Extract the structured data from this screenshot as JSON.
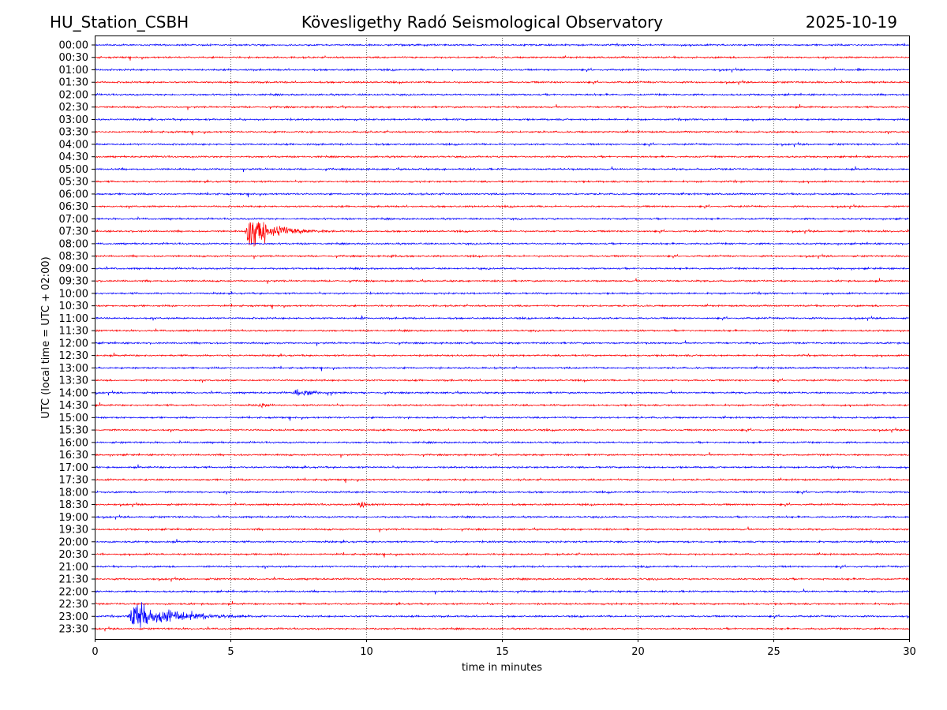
{
  "header": {
    "station": "HU_Station_CSBH",
    "observatory": "Kövesligethy Radó Seismological Observatory",
    "date": "2025-10-19"
  },
  "chart_data": {
    "type": "line",
    "title": "Kövesligethy Radó Seismological Observatory",
    "xlabel": "time in minutes",
    "ylabel": "UTC (local time = UTC + 02:00)",
    "xlim": [
      0,
      30
    ],
    "xticks": [
      "0",
      "5",
      "10",
      "15",
      "20",
      "25",
      "30"
    ],
    "grid": "vertical dotted at every 5 minutes",
    "colors": [
      "#0000ff",
      "#ff0000"
    ],
    "rows": [
      "00:00",
      "00:30",
      "01:00",
      "01:30",
      "02:00",
      "02:30",
      "03:00",
      "03:30",
      "04:00",
      "04:30",
      "05:00",
      "05:30",
      "06:00",
      "06:30",
      "07:00",
      "07:30",
      "08:00",
      "08:30",
      "09:00",
      "09:30",
      "10:00",
      "10:30",
      "11:00",
      "11:30",
      "12:00",
      "12:30",
      "13:00",
      "13:30",
      "14:00",
      "14:30",
      "15:00",
      "15:30",
      "16:00",
      "16:30",
      "17:00",
      "17:30",
      "18:00",
      "18:30",
      "19:00",
      "19:30",
      "20:00",
      "20:30",
      "21:00",
      "21:30",
      "22:00",
      "22:30",
      "23:00",
      "23:30"
    ],
    "events": [
      {
        "row": "07:30",
        "start_min": 5.5,
        "end_min": 8.6,
        "relative_amplitude": 0.6
      },
      {
        "row": "23:00",
        "start_min": 1.2,
        "end_min": 6.3,
        "relative_amplitude": 0.45
      },
      {
        "row": "14:00",
        "start_min": 7.3,
        "end_min": 10.0,
        "relative_amplitude": 0.12
      },
      {
        "row": "14:30",
        "start_min": 6.0,
        "end_min": 6.8,
        "relative_amplitude": 0.12
      },
      {
        "row": "18:30",
        "start_min": 9.7,
        "end_min": 11.0,
        "relative_amplitude": 0.12
      },
      {
        "row": "11:00",
        "start_min": 9.8,
        "end_min": 10.1,
        "relative_amplitude": 0.15
      },
      {
        "row": "08:30",
        "start_min": 10.9,
        "end_min": 11.3,
        "relative_amplitude": 0.1
      },
      {
        "row": "01:00",
        "start_min": 28.1,
        "end_min": 28.3,
        "relative_amplitude": 0.1
      }
    ]
  }
}
